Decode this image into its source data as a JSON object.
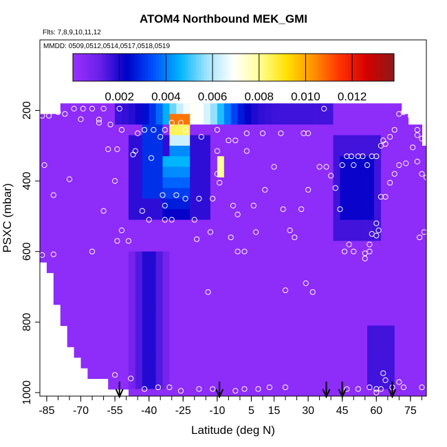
{
  "header": {
    "title": "ATOM4 Northbound MEK_GMI",
    "flights": "Flts: 7,8,9,10,11,12",
    "dates": "MMDD: 0509,0512,0514,0517,0518,0519"
  },
  "chart_data": {
    "type": "heatmap",
    "title": "ATOM4 Northbound MEK_GMI",
    "xlabel": "Latitude (deg N)",
    "ylabel": "PSXC (mbar)",
    "xlim": [
      -88,
      82
    ],
    "ylim": [
      1010,
      0
    ],
    "y_reversed": true,
    "x_ticks": [
      "-85",
      "-70",
      "-55",
      "-40",
      "-25",
      "-10",
      "5",
      "15",
      "30",
      "45",
      "60",
      "75"
    ],
    "x_tick_values": [
      -85,
      -70,
      -55,
      -40,
      -25,
      -10,
      5,
      15,
      30,
      45,
      60,
      75
    ],
    "y_ticks": [
      "200",
      "400",
      "600",
      "800",
      "1000"
    ],
    "y_tick_values": [
      200,
      400,
      600,
      800,
      1000
    ],
    "colorbar": {
      "min": 0,
      "max": 0.0138,
      "tick_values": [
        0.002,
        0.004,
        0.006,
        0.008,
        0.01,
        0.012
      ],
      "tick_labels": [
        "0.002",
        "0.004",
        "0.006",
        "0.008",
        "0.010",
        "0.012"
      ],
      "colors": [
        "#9b30ff",
        "#6a20e8",
        "#0000c8",
        "#0050ff",
        "#00b4ff",
        "#9fe3ff",
        "#ffffff",
        "#ffff90",
        "#ffe000",
        "#ff9000",
        "#ff3000",
        "#d40000",
        "#8c1a1a"
      ]
    },
    "background_value": 0.0003,
    "data_extent": {
      "top_profile": [
        [
          -85,
          215
        ],
        [
          -80,
          200
        ],
        [
          -75,
          175
        ],
        [
          -40,
          175
        ],
        [
          -20,
          175
        ],
        [
          0,
          175
        ],
        [
          30,
          175
        ],
        [
          60,
          175
        ],
        [
          70,
          180
        ],
        [
          73,
          210
        ],
        [
          75,
          240
        ],
        [
          80,
          260
        ],
        [
          82,
          300
        ]
      ],
      "bottom_profile": [
        [
          -85,
          620
        ],
        [
          -82,
          720
        ],
        [
          -78,
          800
        ],
        [
          -72,
          900
        ],
        [
          -68,
          950
        ],
        [
          -60,
          960
        ],
        [
          -57,
          990
        ],
        [
          -50,
          1005
        ],
        [
          82,
          1005
        ]
      ]
    },
    "features": [
      {
        "name": "upper-band",
        "lat": [
          -55,
          40
        ],
        "p": [
          175,
          240
        ],
        "peak": 0.007,
        "peak_lat": -20,
        "width_lat": 16
      },
      {
        "name": "core",
        "lat": [
          -31,
          -22
        ],
        "p": [
          200,
          320
        ],
        "peak": 0.0125
      },
      {
        "name": "core-lower",
        "lat": [
          -34,
          -21
        ],
        "p": [
          320,
          510
        ],
        "peak": 0.005
      },
      {
        "name": "side-blob",
        "lat": [
          -11,
          -8
        ],
        "p": [
          330,
          390
        ],
        "peak": 0.008
      },
      {
        "name": "left-stripe",
        "lat": [
          -43,
          -33
        ],
        "p": [
          250,
          460
        ],
        "peak": 0.003
      },
      {
        "name": "tropical-blue",
        "lat": [
          -48,
          -12
        ],
        "p": [
          260,
          520
        ],
        "peak": 0.0018
      },
      {
        "name": "north-blue",
        "lat": [
          40,
          62
        ],
        "p": [
          260,
          560
        ],
        "peak": 0.0016
      },
      {
        "name": "north-dark",
        "lat": [
          45,
          60
        ],
        "p": [
          320,
          520
        ],
        "peak": 0.0022
      },
      {
        "name": "low-plume",
        "lat": [
          -50,
          -30
        ],
        "p": [
          600,
          990
        ],
        "peak": 0.0022
      },
      {
        "name": "right-edge",
        "lat": [
          55,
          67
        ],
        "p": [
          800,
          990
        ],
        "peak": 0.0016
      }
    ],
    "samples": [
      [
        -87,
        215
      ],
      [
        -84,
        215
      ],
      [
        -80,
        205
      ],
      [
        -77,
        210
      ],
      [
        -73,
        195
      ],
      [
        -69,
        195
      ],
      [
        -65,
        195
      ],
      [
        -60,
        195
      ],
      [
        -53,
        195
      ],
      [
        -45,
        265
      ],
      [
        -42,
        255
      ],
      [
        -38,
        255
      ],
      [
        -33,
        255
      ],
      [
        -30,
        235
      ],
      [
        -26,
        235
      ],
      [
        -24,
        255
      ],
      [
        -17,
        275
      ],
      [
        -10,
        255
      ],
      [
        -5,
        285
      ],
      [
        -2,
        285
      ],
      [
        3,
        265
      ],
      [
        10,
        265
      ],
      [
        18,
        265
      ],
      [
        28,
        265
      ],
      [
        30,
        265
      ],
      [
        37,
        195
      ],
      [
        -58,
        310
      ],
      [
        -54,
        310
      ],
      [
        -46,
        315
      ],
      [
        -35,
        275
      ],
      [
        -10,
        315
      ],
      [
        3,
        315
      ],
      [
        -86,
        355
      ],
      [
        -75,
        395
      ],
      [
        -55,
        400
      ],
      [
        -47,
        325
      ],
      [
        -39,
        335
      ],
      [
        -34,
        440
      ],
      [
        -28,
        440
      ],
      [
        -24,
        450
      ],
      [
        -18,
        450
      ],
      [
        -12,
        450
      ],
      [
        -9,
        405
      ],
      [
        -82,
        440
      ],
      [
        -60,
        485
      ],
      [
        -43,
        485
      ],
      [
        -33,
        510
      ],
      [
        -30,
        510
      ],
      [
        -20,
        510
      ],
      [
        -19,
        565
      ],
      [
        -13,
        545
      ],
      [
        -10,
        380
      ],
      [
        -3,
        470
      ],
      [
        -1,
        495
      ],
      [
        6,
        470
      ],
      [
        11,
        425
      ],
      [
        15,
        360
      ],
      [
        19,
        480
      ],
      [
        22,
        540
      ],
      [
        24,
        560
      ],
      [
        27,
        480
      ],
      [
        30,
        425
      ],
      [
        -4,
        560
      ],
      [
        -1,
        600
      ],
      [
        2,
        600
      ],
      [
        7,
        545
      ],
      [
        -87,
        610
      ],
      [
        -82,
        608
      ],
      [
        -54,
        570
      ],
      [
        -49,
        570
      ],
      [
        -52,
        540
      ],
      [
        -40,
        510
      ],
      [
        -33,
        470
      ],
      [
        -86,
        810
      ],
      [
        -55,
        950
      ],
      [
        -48,
        960
      ],
      [
        -42,
        990
      ],
      [
        -36,
        985
      ],
      [
        -31,
        985
      ],
      [
        -26,
        995
      ],
      [
        -18,
        990
      ],
      [
        -12,
        990
      ],
      [
        -2,
        995
      ],
      [
        2,
        990
      ],
      [
        8,
        990
      ],
      [
        13,
        985
      ],
      [
        20,
        985
      ],
      [
        29,
        690
      ],
      [
        32,
        715
      ],
      [
        -14,
        715
      ],
      [
        20,
        710
      ],
      [
        35,
        360
      ],
      [
        38,
        360
      ],
      [
        40,
        385
      ],
      [
        42,
        420
      ],
      [
        45,
        355
      ],
      [
        47,
        330
      ],
      [
        49,
        330
      ],
      [
        50,
        355
      ],
      [
        52,
        330
      ],
      [
        54,
        330
      ],
      [
        56,
        355
      ],
      [
        58,
        330
      ],
      [
        60,
        330
      ],
      [
        62,
        300
      ],
      [
        63,
        285
      ],
      [
        64,
        295
      ],
      [
        66,
        275
      ],
      [
        68,
        255
      ],
      [
        70,
        210
      ],
      [
        72,
        205
      ],
      [
        75,
        215
      ],
      [
        78,
        270
      ],
      [
        80,
        280
      ],
      [
        44,
        480
      ],
      [
        46,
        600
      ],
      [
        48,
        580
      ],
      [
        50,
        600
      ],
      [
        55,
        620
      ],
      [
        57,
        580
      ],
      [
        58,
        550
      ],
      [
        60,
        520
      ],
      [
        62,
        445
      ],
      [
        64,
        445
      ],
      [
        66,
        405
      ],
      [
        68,
        380
      ],
      [
        70,
        355
      ],
      [
        73,
        350
      ],
      [
        76,
        305
      ],
      [
        78,
        255
      ],
      [
        78,
        345
      ],
      [
        80,
        380
      ],
      [
        82,
        390
      ],
      [
        83,
        540
      ],
      [
        81,
        545
      ],
      [
        79,
        560
      ],
      [
        60,
        555
      ],
      [
        61,
        540
      ],
      [
        57,
        600
      ],
      [
        55,
        605
      ],
      [
        47,
        990
      ],
      [
        52,
        990
      ],
      [
        57,
        985
      ],
      [
        60,
        990
      ],
      [
        62,
        990
      ],
      [
        63,
        945
      ],
      [
        64,
        965
      ],
      [
        67,
        985
      ],
      [
        70,
        970
      ],
      [
        72,
        985
      ],
      [
        80,
        985
      ],
      [
        60,
        1000
      ],
      [
        -70,
        225
      ],
      [
        -52,
        255
      ],
      [
        -57,
        240
      ],
      [
        -62,
        226
      ],
      [
        -62,
        235
      ],
      [
        -65,
        600
      ]
    ],
    "arrows": [
      -53,
      -9,
      38,
      45,
      67
    ]
  }
}
